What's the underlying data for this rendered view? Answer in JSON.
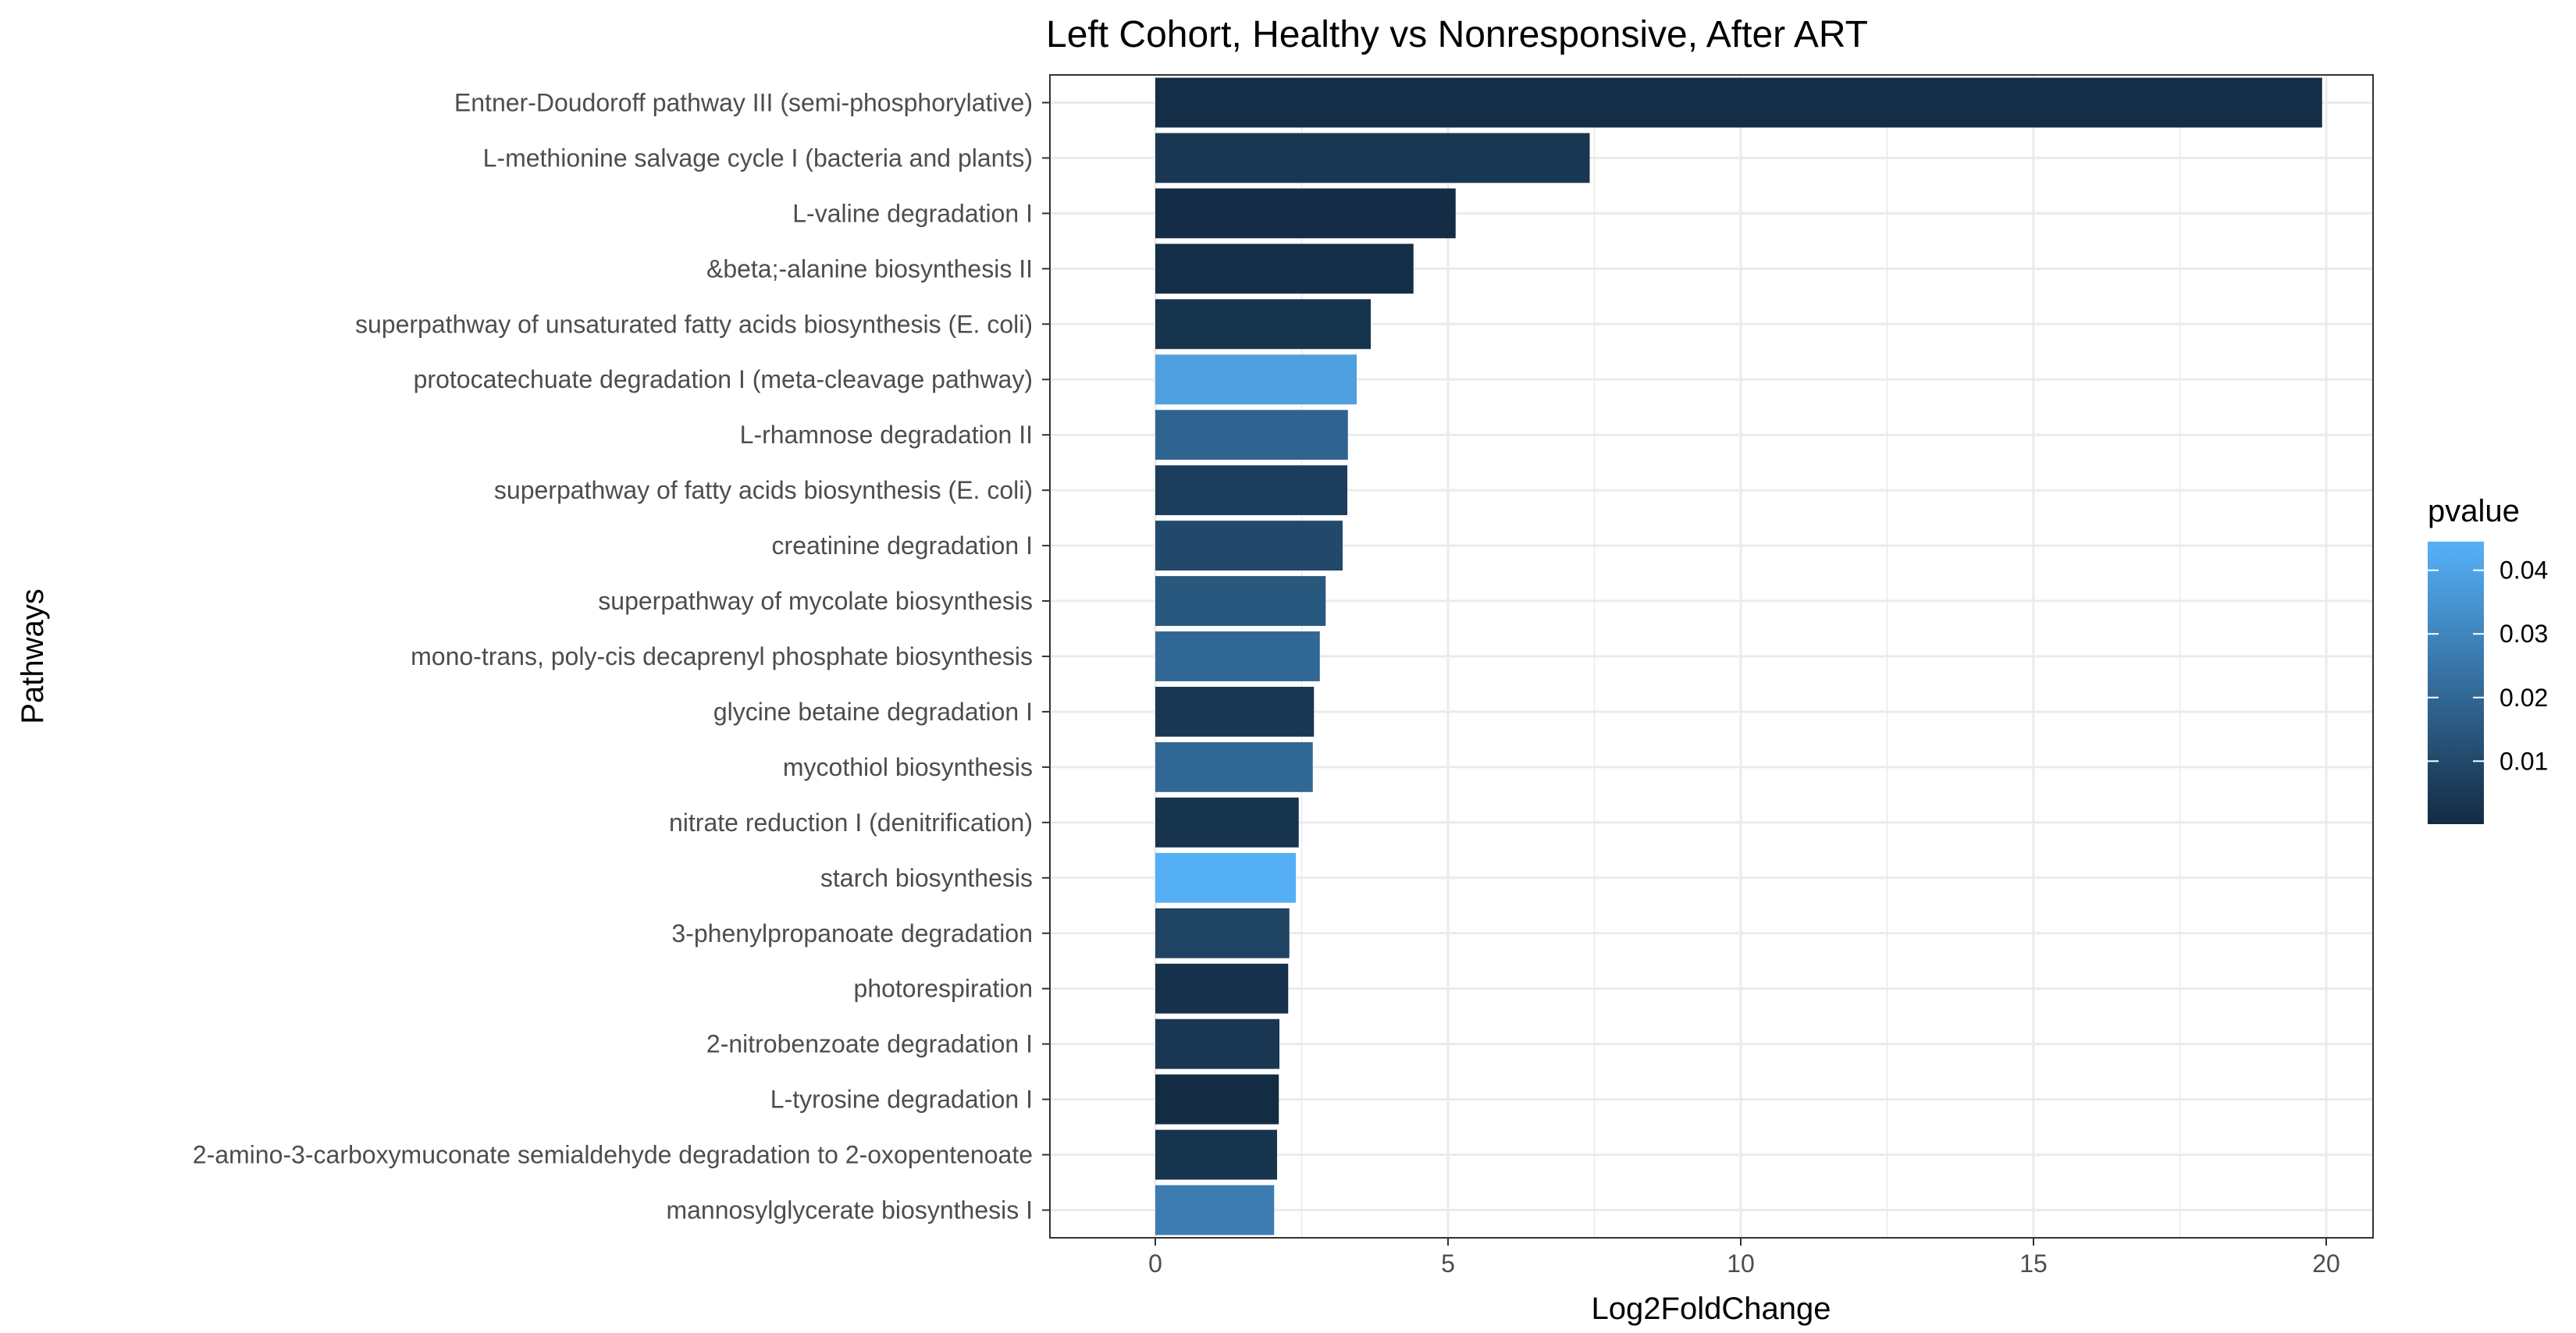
{
  "chart_data": {
    "type": "bar",
    "orientation": "horizontal",
    "title": "Left Cohort, Healthy vs Nonresponsive, After ART",
    "xlabel": "Log2FoldChange",
    "ylabel": "Pathways",
    "xlim": [
      -1.8,
      20.8
    ],
    "xticks": [
      0,
      5,
      10,
      15,
      20
    ],
    "xtick_labels": [
      "0",
      "5",
      "10",
      "15",
      "20"
    ],
    "grid": true,
    "legend_placement": "right",
    "categories": [
      "Entner-Doudoroff pathway III (semi-phosphorylative)",
      "L-methionine salvage cycle I (bacteria and plants)",
      "L-valine degradation I",
      "&beta;-alanine biosynthesis II",
      "superpathway of unsaturated fatty acids biosynthesis (E. coli)",
      "protocatechuate degradation I (meta-cleavage pathway)",
      "L-rhamnose degradation II",
      "superpathway of fatty acids biosynthesis (E. coli)",
      "creatinine degradation I",
      "superpathway of mycolate biosynthesis",
      "mono-trans, poly-cis decaprenyl phosphate biosynthesis",
      "glycine betaine degradation I",
      "mycothiol biosynthesis",
      "nitrate reduction I (denitrification)",
      "starch biosynthesis",
      "3-phenylpropanoate degradation",
      "photorespiration",
      "2-nitrobenzoate degradation I",
      "L-tyrosine degradation I",
      "2-amino-3-carboxymuconate semialdehyde degradation to 2-oxopentenoate",
      "mannosylglycerate biosynthesis I"
    ],
    "values": [
      19.93,
      7.42,
      5.13,
      4.41,
      3.68,
      3.44,
      3.29,
      3.28,
      3.2,
      2.91,
      2.81,
      2.71,
      2.69,
      2.45,
      2.4,
      2.29,
      2.27,
      2.12,
      2.11,
      2.08,
      2.03
    ],
    "pvalues": [
      0.001,
      0.004,
      0.0005,
      0.0015,
      0.003,
      0.039,
      0.019,
      0.006,
      0.01,
      0.015,
      0.02,
      0.004,
      0.02,
      0.003,
      0.044,
      0.008,
      0.002,
      0.004,
      0.0003,
      0.003,
      0.027
    ],
    "legend": {
      "title": "pvalue",
      "ticks": [
        0.01,
        0.02,
        0.03,
        0.04
      ],
      "tick_labels": [
        "0.01",
        "0.02",
        "0.03",
        "0.04"
      ],
      "range": [
        0.0001,
        0.0445
      ],
      "color_low": "#132B43",
      "color_high": "#56B1F7"
    }
  }
}
